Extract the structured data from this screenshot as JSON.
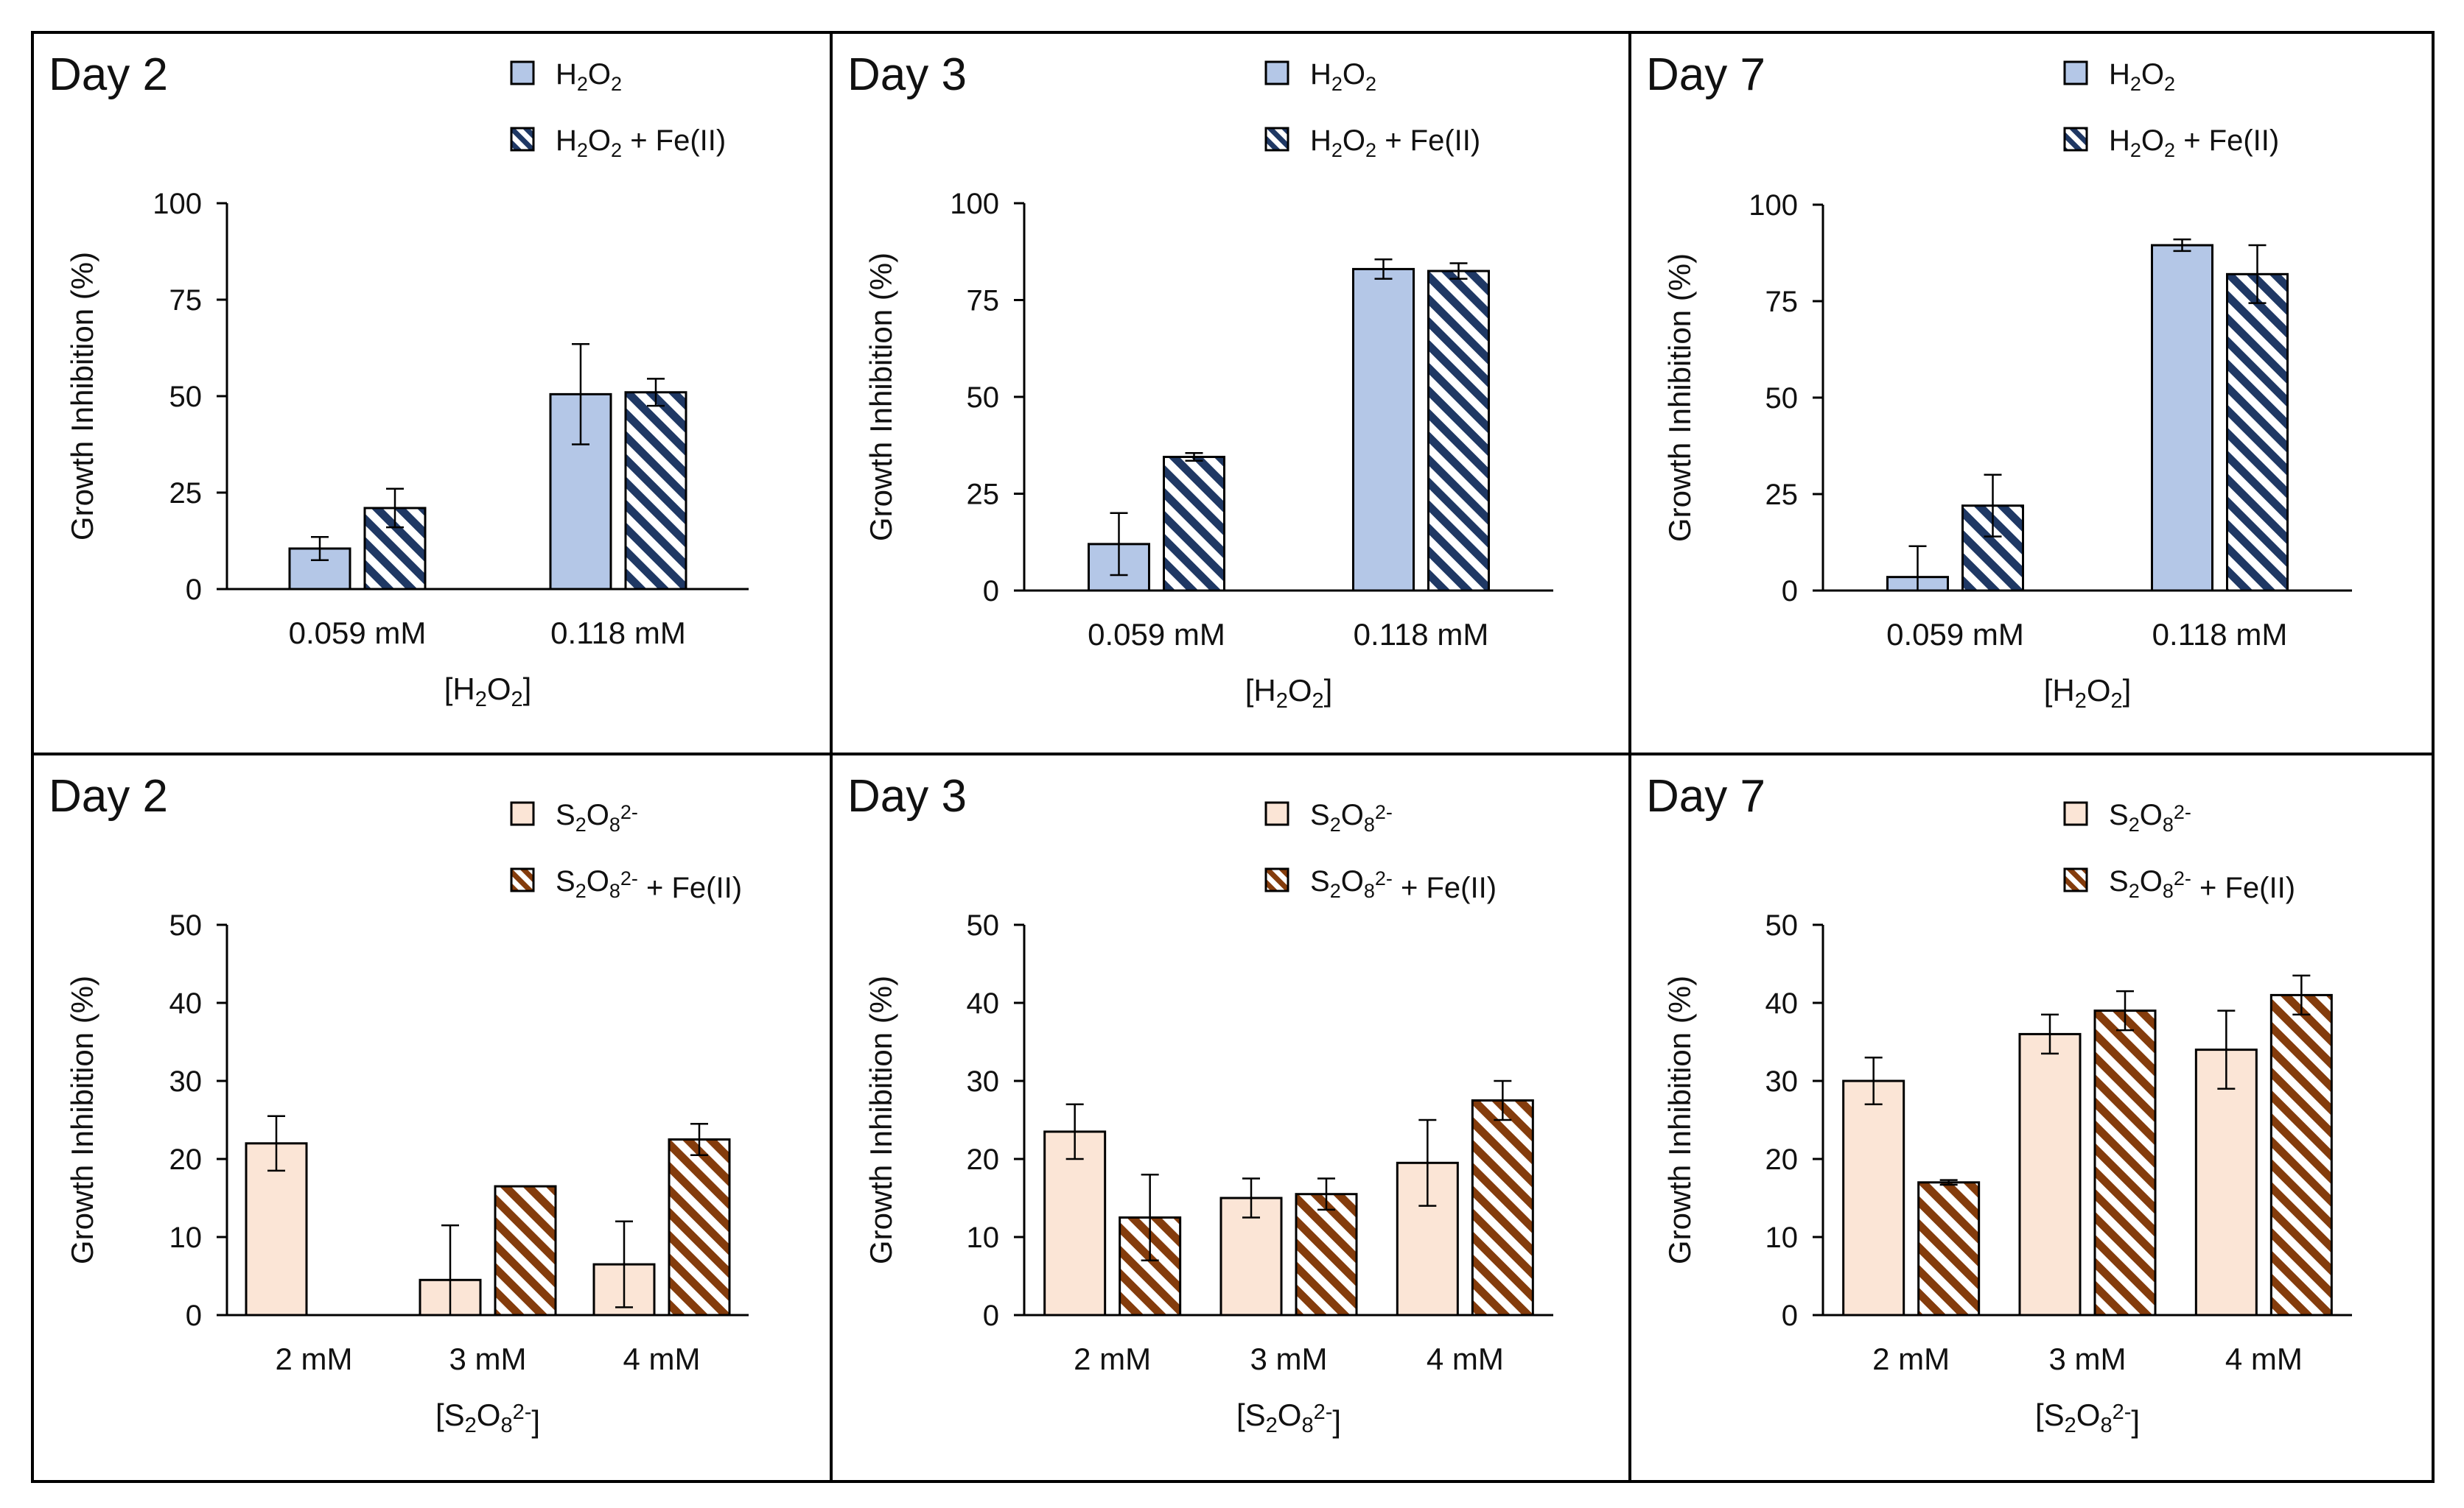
{
  "panels": [
    {
      "title": "Day 2",
      "type": "bar",
      "categories": [
        "0.059 mM",
        "0.118 mM"
      ],
      "xlabel_parts": [
        "[H",
        "2",
        "O",
        "2",
        "]"
      ],
      "ylabel": "Growth Inhibition (%)",
      "ylim": [
        0,
        100
      ],
      "yticks": [
        "0",
        "25",
        "50",
        "75",
        "100"
      ],
      "legend": [
        {
          "parts": [
            "H",
            "2",
            "O",
            "2"
          ],
          "pattern": "solid"
        },
        {
          "parts": [
            "H",
            "2",
            "O",
            "2",
            " + Fe(II)"
          ],
          "pattern": "hatched"
        }
      ],
      "series": [
        {
          "name": "H2O2",
          "values": [
            10.5,
            50.5
          ],
          "errors": [
            3,
            13
          ],
          "pattern": "solid"
        },
        {
          "name": "H2O2 + Fe(II)",
          "values": [
            21,
            51
          ],
          "errors": [
            5,
            3.5
          ],
          "pattern": "hatched"
        }
      ],
      "palette": "blue"
    },
    {
      "title": "Day 3",
      "type": "bar",
      "categories": [
        "0.059 mM",
        "0.118 mM"
      ],
      "xlabel_parts": [
        "[H",
        "2",
        "O",
        "2",
        "]"
      ],
      "ylabel": "Growth Inhibition (%)",
      "ylim": [
        0,
        100
      ],
      "yticks": [
        "0",
        "25",
        "50",
        "75",
        "100"
      ],
      "legend": [
        {
          "parts": [
            "H",
            "2",
            "O",
            "2"
          ],
          "pattern": "solid"
        },
        {
          "parts": [
            "H",
            "2",
            "O",
            "2",
            " + Fe(II)"
          ],
          "pattern": "hatched"
        }
      ],
      "series": [
        {
          "name": "H2O2",
          "values": [
            12,
            83
          ],
          "errors": [
            8,
            2.5
          ],
          "pattern": "solid"
        },
        {
          "name": "H2O2 + Fe(II)",
          "values": [
            34.5,
            82.5
          ],
          "errors": [
            1,
            2
          ],
          "pattern": "hatched"
        }
      ],
      "palette": "blue"
    },
    {
      "title": "Day 7",
      "type": "bar",
      "categories": [
        "0.059 mM",
        "0.118 mM"
      ],
      "xlabel_parts": [
        "[H",
        "2",
        "O",
        "2",
        "]"
      ],
      "ylabel": "Growth Inhibition (%)",
      "ylim": [
        0,
        100
      ],
      "yticks": [
        "0",
        "25",
        "50",
        "75",
        "100"
      ],
      "legend": [
        {
          "parts": [
            "H",
            "2",
            "O",
            "2"
          ],
          "pattern": "solid"
        },
        {
          "parts": [
            "H",
            "2",
            "O",
            "2",
            " + Fe(II)"
          ],
          "pattern": "hatched"
        }
      ],
      "series": [
        {
          "name": "H2O2",
          "values": [
            3.5,
            89.5
          ],
          "errors": [
            8,
            1.5
          ],
          "pattern": "solid"
        },
        {
          "name": "H2O2 + Fe(II)",
          "values": [
            22,
            82
          ],
          "errors": [
            8,
            7.5
          ],
          "pattern": "hatched"
        }
      ],
      "palette": "blue"
    },
    {
      "title": "Day 2",
      "type": "bar",
      "categories": [
        "2 mM",
        "3 mM",
        "4 mM"
      ],
      "xlabel_parts": [
        "[S",
        "2",
        "O",
        "8",
        "2-",
        "]"
      ],
      "ylabel": "Growth Inhibition (%)",
      "ylim": [
        0,
        50
      ],
      "yticks": [
        "0",
        "10",
        "20",
        "30",
        "40",
        "50"
      ],
      "legend": [
        {
          "parts": [
            "S",
            "2",
            "O",
            "8",
            "2-"
          ],
          "pattern": "solid"
        },
        {
          "parts": [
            "S",
            "2",
            "O",
            "8",
            "2-",
            " + Fe(II)"
          ],
          "pattern": "hatched"
        }
      ],
      "series": [
        {
          "name": "S2O8 2-",
          "values": [
            22,
            4.5,
            6.5
          ],
          "errors": [
            3.5,
            7,
            5.5
          ],
          "pattern": "solid"
        },
        {
          "name": "S2O8 2- + Fe(II)",
          "values": [
            0,
            16.5,
            22.5
          ],
          "errors": [
            0,
            0,
            2
          ],
          "pattern": "hatched"
        }
      ],
      "palette": "orange"
    },
    {
      "title": "Day 3",
      "type": "bar",
      "categories": [
        "2 mM",
        "3 mM",
        "4 mM"
      ],
      "xlabel_parts": [
        "[S",
        "2",
        "O",
        "8",
        "2-",
        "]"
      ],
      "ylabel": "Growth Inhibition (%)",
      "ylim": [
        0,
        50
      ],
      "yticks": [
        "0",
        "10",
        "20",
        "30",
        "40",
        "50"
      ],
      "legend": [
        {
          "parts": [
            "S",
            "2",
            "O",
            "8",
            "2-"
          ],
          "pattern": "solid"
        },
        {
          "parts": [
            "S",
            "2",
            "O",
            "8",
            "2-",
            " + Fe(II)"
          ],
          "pattern": "hatched"
        }
      ],
      "series": [
        {
          "name": "S2O8 2-",
          "values": [
            23.5,
            15,
            19.5
          ],
          "errors": [
            3.5,
            2.5,
            5.5
          ],
          "pattern": "solid"
        },
        {
          "name": "S2O8 2- + Fe(II)",
          "values": [
            12.5,
            15.5,
            27.5
          ],
          "errors": [
            5.5,
            2,
            2.5
          ],
          "pattern": "hatched"
        }
      ],
      "palette": "orange"
    },
    {
      "title": "Day 7",
      "type": "bar",
      "categories": [
        "2 mM",
        "3 mM",
        "4 mM"
      ],
      "xlabel_parts": [
        "[S",
        "2",
        "O",
        "8",
        "2-",
        "]"
      ],
      "ylabel": "Growth Inhibition (%)",
      "ylim": [
        0,
        50
      ],
      "yticks": [
        "0",
        "10",
        "20",
        "30",
        "40",
        "50"
      ],
      "legend": [
        {
          "parts": [
            "S",
            "2",
            "O",
            "8",
            "2-"
          ],
          "pattern": "solid"
        },
        {
          "parts": [
            "S",
            "2",
            "O",
            "8",
            "2-",
            " + Fe(II)"
          ],
          "pattern": "hatched"
        }
      ],
      "series": [
        {
          "name": "S2O8 2-",
          "values": [
            30,
            36,
            34
          ],
          "errors": [
            3,
            2.5,
            5
          ],
          "pattern": "solid"
        },
        {
          "name": "S2O8 2- + Fe(II)",
          "values": [
            17,
            39,
            41
          ],
          "errors": [
            0.3,
            2.5,
            2.5
          ],
          "pattern": "hatched"
        }
      ],
      "palette": "orange"
    }
  ],
  "chart_data": [
    {
      "type": "bar",
      "title": "Day 2",
      "categories": [
        "0.059 mM",
        "0.118 mM"
      ],
      "xlabel": "[H2O2]",
      "ylabel": "Growth Inhibition (%)",
      "ylim": [
        0,
        100
      ],
      "series": [
        {
          "name": "H2O2",
          "values": [
            10.5,
            50.5
          ],
          "errors": [
            3,
            13
          ]
        },
        {
          "name": "H2O2 + Fe(II)",
          "values": [
            21,
            51
          ],
          "errors": [
            5,
            3.5
          ]
        }
      ]
    },
    {
      "type": "bar",
      "title": "Day 3",
      "categories": [
        "0.059 mM",
        "0.118 mM"
      ],
      "xlabel": "[H2O2]",
      "ylabel": "Growth Inhibition (%)",
      "ylim": [
        0,
        100
      ],
      "series": [
        {
          "name": "H2O2",
          "values": [
            12,
            83
          ],
          "errors": [
            8,
            2.5
          ]
        },
        {
          "name": "H2O2 + Fe(II)",
          "values": [
            34.5,
            82.5
          ],
          "errors": [
            1,
            2
          ]
        }
      ]
    },
    {
      "type": "bar",
      "title": "Day 7",
      "categories": [
        "0.059 mM",
        "0.118 mM"
      ],
      "xlabel": "[H2O2]",
      "ylabel": "Growth Inhibition (%)",
      "ylim": [
        0,
        100
      ],
      "series": [
        {
          "name": "H2O2",
          "values": [
            3.5,
            89.5
          ],
          "errors": [
            8,
            1.5
          ]
        },
        {
          "name": "H2O2 + Fe(II)",
          "values": [
            22,
            82
          ],
          "errors": [
            8,
            7.5
          ]
        }
      ]
    },
    {
      "type": "bar",
      "title": "Day 2",
      "categories": [
        "2 mM",
        "3 mM",
        "4 mM"
      ],
      "xlabel": "[S2O8 2-]",
      "ylabel": "Growth Inhibition (%)",
      "ylim": [
        0,
        50
      ],
      "series": [
        {
          "name": "S2O8 2-",
          "values": [
            22,
            4.5,
            6.5
          ],
          "errors": [
            3.5,
            7,
            5.5
          ]
        },
        {
          "name": "S2O8 2- + Fe(II)",
          "values": [
            0,
            16.5,
            22.5
          ],
          "errors": [
            0,
            0,
            2
          ]
        }
      ]
    },
    {
      "type": "bar",
      "title": "Day 3",
      "categories": [
        "2 mM",
        "3 mM",
        "4 mM"
      ],
      "xlabel": "[S2O8 2-]",
      "ylabel": "Growth Inhibition (%)",
      "ylim": [
        0,
        50
      ],
      "series": [
        {
          "name": "S2O8 2-",
          "values": [
            23.5,
            15,
            19.5
          ],
          "errors": [
            3.5,
            2.5,
            5.5
          ]
        },
        {
          "name": "S2O8 2- + Fe(II)",
          "values": [
            12.5,
            15.5,
            27.5
          ],
          "errors": [
            5.5,
            2,
            2.5
          ]
        }
      ]
    },
    {
      "type": "bar",
      "title": "Day 7",
      "categories": [
        "2 mM",
        "3 mM",
        "4 mM"
      ],
      "xlabel": "[S2O8 2-]",
      "ylabel": "Growth Inhibition (%)",
      "ylim": [
        0,
        50
      ],
      "series": [
        {
          "name": "S2O8 2-",
          "values": [
            30,
            36,
            34
          ],
          "errors": [
            3,
            2.5,
            5
          ]
        },
        {
          "name": "S2O8 2- + Fe(II)",
          "values": [
            17,
            39,
            41
          ],
          "errors": [
            0.3,
            2.5,
            2.5
          ]
        }
      ]
    }
  ],
  "colors": {
    "blue_fill": "#b4c7e7",
    "blue_hatch": "#1f3864",
    "orange_fill": "#fbe5d6",
    "orange_hatch": "#843c0c",
    "axis": "#000000",
    "border": "#000000"
  }
}
